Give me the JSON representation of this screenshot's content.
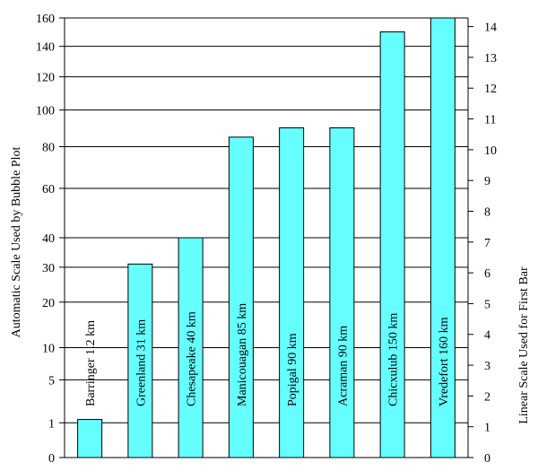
{
  "chart_data": {
    "type": "bar",
    "categories": [
      "Barringer  1.2 km",
      "Greenland  31 km",
      "Chesapeake  40 km",
      "Manicouagan  85 km",
      "Popigal 90 km",
      "Acraman 90 km",
      "Chicxulub 150 km",
      "Vredefort  160 km"
    ],
    "diameters_km": [
      1.2,
      31,
      40,
      85,
      90,
      90,
      150,
      160
    ],
    "left_axis": {
      "label": "Automatic Scale Used by Bubble Plot",
      "ticks": [
        0,
        1,
        5,
        10,
        20,
        30,
        40,
        60,
        80,
        100,
        120,
        140,
        160
      ],
      "scale": "sqrt",
      "range": [
        0,
        160
      ],
      "gridlines": true
    },
    "right_axis": {
      "label": "Linear Scale Used for First Bar",
      "ticks": [
        0,
        1,
        2,
        3,
        4,
        5,
        6,
        7,
        8,
        9,
        10,
        11,
        12,
        13,
        14
      ],
      "scale": "linear",
      "range": [
        0,
        14.28
      ]
    },
    "bar_color": "#66ffff",
    "legend": "none"
  }
}
